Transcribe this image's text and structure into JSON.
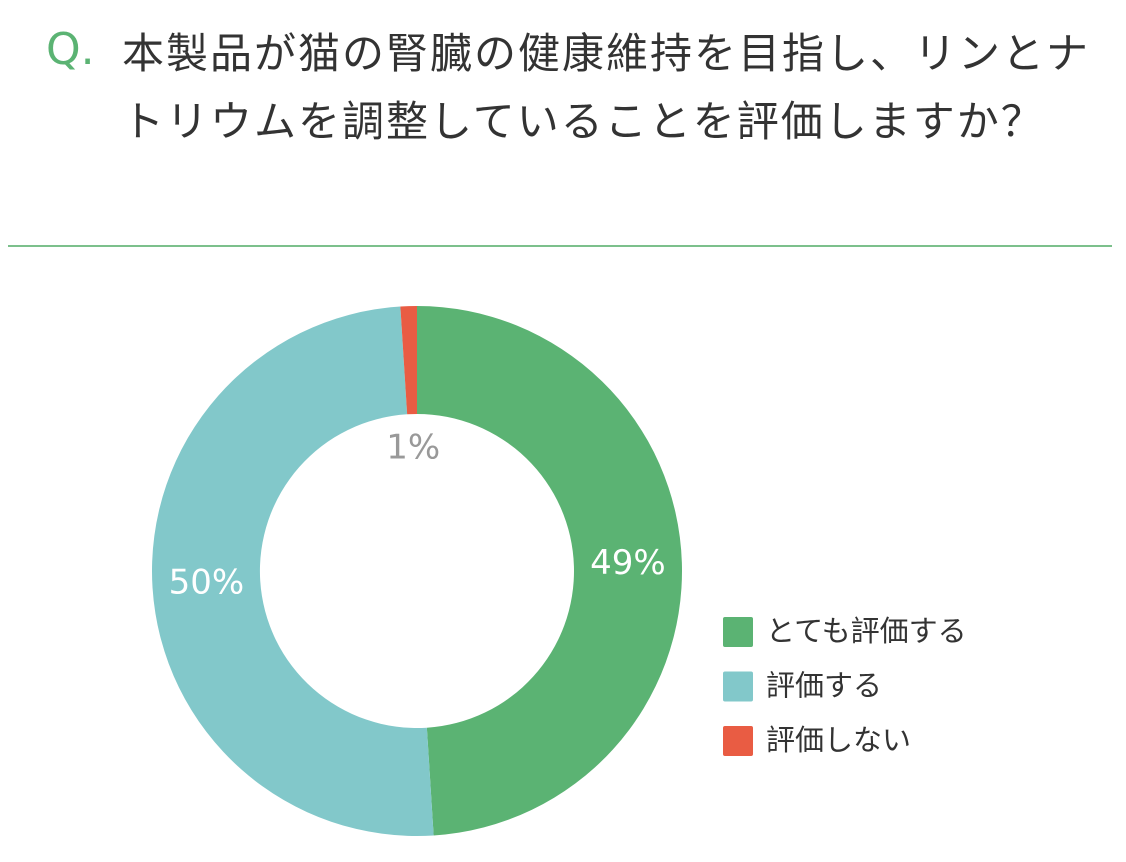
{
  "chart_data": {
    "type": "donut",
    "question_marker": "Q.",
    "title": "本製品が猫の腎臓の健康維持を目指し、リンとナトリウムを調整していることを評価しますか？",
    "categories": [
      "とても評価する",
      "評価する",
      "評価しない"
    ],
    "values": [
      49,
      50,
      1
    ],
    "value_labels": [
      "49%",
      "50%",
      "1%"
    ],
    "colors": [
      "#5bb373",
      "#82c8ca",
      "#e95c43"
    ],
    "legend": "right"
  }
}
